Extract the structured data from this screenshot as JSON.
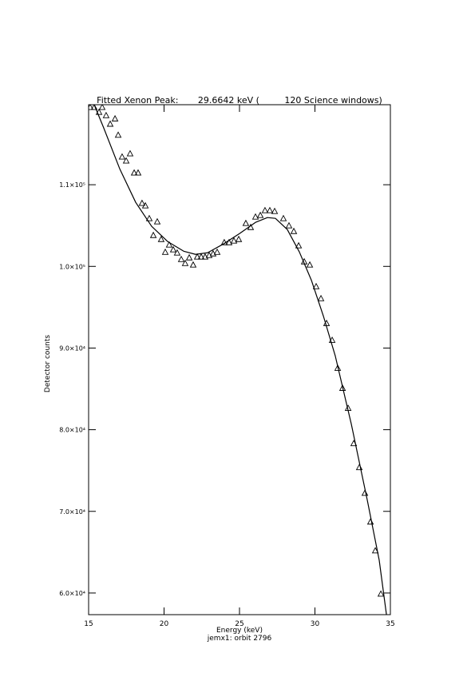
{
  "chart_data": {
    "type": "scatter",
    "title": "Fitted Xenon Peak:       29.6642 keV (         120 Science windows)",
    "x_label": "Energy (keV)",
    "subtitle": "jemx1: orbit 2796",
    "y_label": "Detector counts",
    "xlim": [
      15,
      35
    ],
    "xticks": [
      15,
      20,
      25,
      30,
      35
    ],
    "ylim": [
      57350,
      119800
    ],
    "yticks": [
      {
        "value": 60000,
        "label": "6.0×10⁴"
      },
      {
        "value": 70000,
        "label": "7.0×10⁴"
      },
      {
        "value": 80000,
        "label": "8.0×10⁴"
      },
      {
        "value": 90000,
        "label": "9.0×10⁴"
      },
      {
        "value": 100000,
        "label": "1.0×10⁵"
      },
      {
        "value": 110000,
        "label": "1.1×10⁵"
      }
    ],
    "series": [
      {
        "style": "markers",
        "color": "#000000",
        "x": [
          15.1,
          15.37,
          15.69,
          15.9,
          16.16,
          16.43,
          16.75,
          16.96,
          17.22,
          17.49,
          17.75,
          18.02,
          18.28,
          18.54,
          18.76,
          19.02,
          19.29,
          19.55,
          19.81,
          20.08,
          20.34,
          20.61,
          20.87,
          21.14,
          21.4,
          21.67,
          21.93,
          22.2,
          22.46,
          22.72,
          22.99,
          23.25,
          23.52,
          23.99,
          24.31,
          24.63,
          24.95,
          25.42,
          25.74,
          26.06,
          26.38,
          26.69,
          27.01,
          27.33,
          27.91,
          28.28,
          28.6,
          28.92,
          29.29,
          29.66,
          30.08,
          30.4,
          30.77,
          31.14,
          31.51,
          31.83,
          32.2,
          32.57,
          32.94,
          33.31,
          33.68,
          34.0,
          34.37
        ],
        "values": [
          119500,
          119500,
          118900,
          119500,
          118500,
          117450,
          118100,
          116100,
          113430,
          112940,
          113820,
          111470,
          111470,
          107750,
          107450,
          105880,
          103820,
          105490,
          103330,
          101760,
          102650,
          102060,
          101670,
          100880,
          100390,
          101080,
          100200,
          101180,
          101180,
          101180,
          101370,
          101570,
          101760,
          102940,
          102940,
          103140,
          103330,
          105290,
          104800,
          106080,
          106270,
          106860,
          106860,
          106760,
          105880,
          105000,
          104310,
          102550,
          100590,
          100200,
          97550,
          96080,
          93040,
          90980,
          87550,
          85100,
          82650,
          78330,
          75390,
          72250,
          68730,
          65200,
          59900
        ]
      },
      {
        "style": "line",
        "color": "#000000",
        "x": [
          15.37,
          16.0,
          17.06,
          18.12,
          19.18,
          20.24,
          21.3,
          22.09,
          22.88,
          23.94,
          25.0,
          26.06,
          26.85,
          27.38,
          28.17,
          28.97,
          29.76,
          30.56,
          31.35,
          32.41,
          33.47,
          34.26,
          34.74
        ],
        "values": [
          119800,
          116960,
          111960,
          107840,
          104900,
          103040,
          101860,
          101470,
          101670,
          102750,
          104020,
          105390,
          105980,
          105880,
          104510,
          101760,
          98330,
          93920,
          89020,
          80690,
          71370,
          64020,
          57350
        ]
      }
    ]
  }
}
